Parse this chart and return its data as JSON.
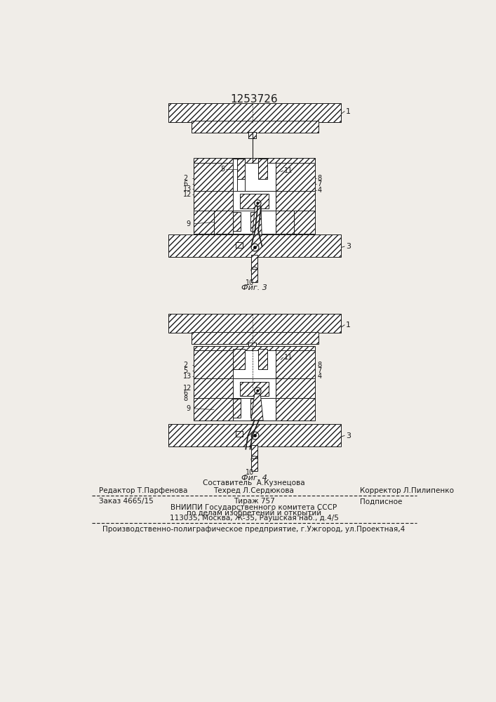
{
  "title": "1253726",
  "title_fontsize": 11,
  "bg_color": "#f0ede8",
  "line_color": "#1a1a1a",
  "fig1_caption": "Фиг. 3",
  "fig2_caption": "Фиг. 4",
  "footer": {
    "sestavitel": "Составитель  А.Кузнецова",
    "redaktor": "Редактор Т.Парфенова",
    "tehred": "Техред Л.Сердюкова",
    "korrektor": "Корректор Л.Пилипенко",
    "zakaz": "Заказ 4665/15",
    "tirazh": "Тираж 757",
    "podpisnoe": "Подписное",
    "line3": "ВНИИПИ Государственного комитета СССР",
    "line4": "по делам изобретений и открытий",
    "line5": "113035, Москва, Ж-35, Раушская наб., д.4/5",
    "line6": "Производственно-полиграфическое предприятие, г.Ужгород, ул.Проектная,4"
  }
}
